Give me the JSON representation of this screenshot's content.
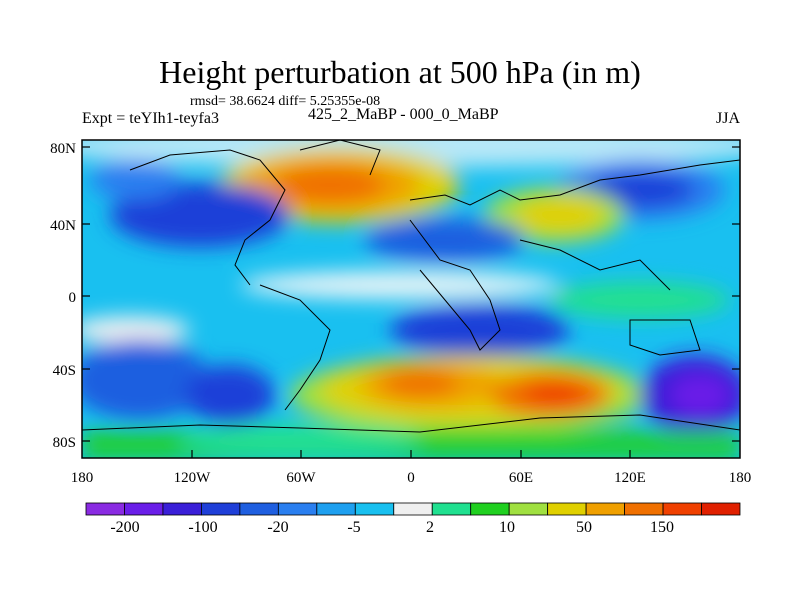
{
  "map": {
    "title": "Height perturbation at 500 hPa (in m)",
    "stats_line": "rmsd= 38.6624 diff= 5.25355e-08",
    "comparison": "425_2_MaBP - 000_0_MaBP",
    "experiment": "Expt = teYIh1-teyfa3",
    "season": "JJA",
    "lat_ticks": [
      "80N",
      "40N",
      "0",
      "40S",
      "80S"
    ],
    "lon_ticks": [
      "180",
      "120W",
      "60W",
      "0",
      "60E",
      "120E",
      "180"
    ]
  },
  "colorbar": {
    "labels": [
      "-200",
      "-100",
      "-20",
      "-5",
      "2",
      "10",
      "50",
      "150"
    ],
    "colors": [
      "#8a2be2",
      "#6a1ee8",
      "#3a1fd8",
      "#1f3fd8",
      "#1f5fe0",
      "#2a7ff0",
      "#1ea0f0",
      "#19c0f0",
      "#f0f0f0",
      "#20e090",
      "#20d020",
      "#a0e040",
      "#e0d000",
      "#f0a000",
      "#f07000",
      "#f04000",
      "#e02000"
    ]
  }
}
